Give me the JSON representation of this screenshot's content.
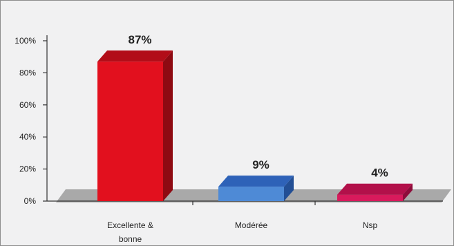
{
  "chart_data": {
    "type": "bar",
    "categories": [
      "Excellente & bonne",
      "Modérée",
      "Nsp"
    ],
    "values": [
      87,
      9,
      4
    ],
    "data_labels": [
      "87%",
      "9%",
      "4%"
    ],
    "y_ticks": [
      "0%",
      "20%",
      "40%",
      "60%",
      "80%",
      "100%"
    ],
    "ylim": [
      0,
      100
    ],
    "grid": false,
    "legend": "none",
    "colors": {
      "bar_front": [
        "#e2101e",
        "#4e8ad6",
        "#d81a5c"
      ],
      "bar_top": [
        "#b20d18",
        "#2e62b8",
        "#b2104a"
      ],
      "bar_side": [
        "#8e0a12",
        "#234f95",
        "#8d0c3a"
      ],
      "floor": "#a9a9a9",
      "axis": "#333333"
    }
  }
}
